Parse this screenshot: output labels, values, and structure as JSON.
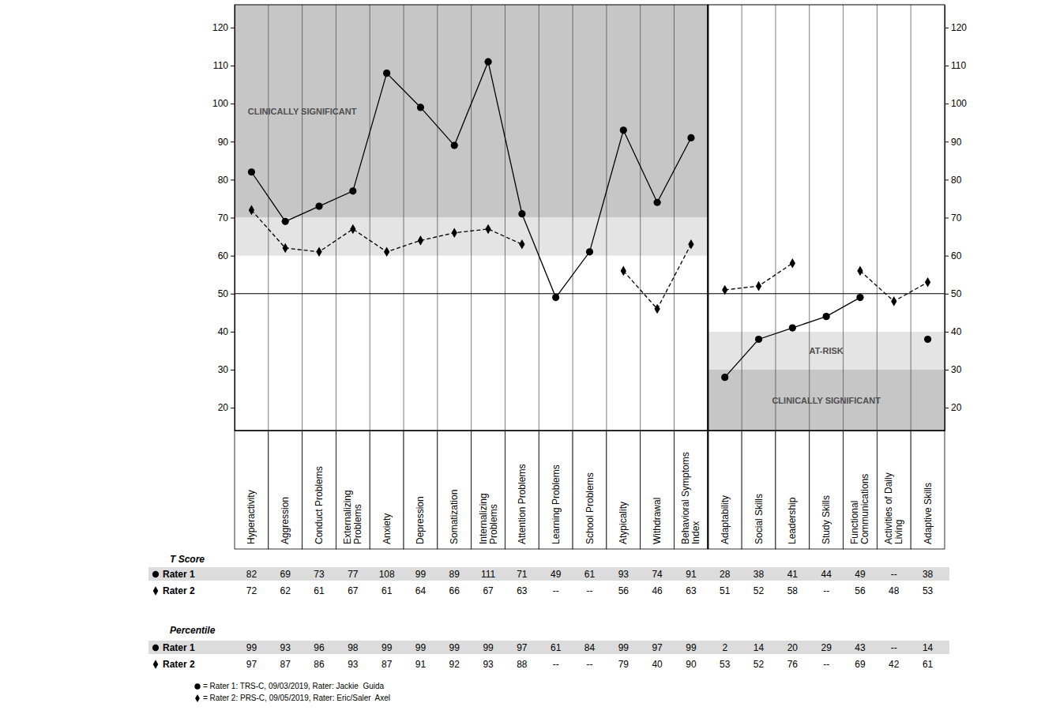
{
  "chart_data": [
    {
      "type": "line",
      "categories": [
        "Hyperactivity",
        "Aggression",
        "Conduct Problems",
        "Externalizing Problems",
        "Anxiety",
        "Depression",
        "Somatization",
        "Internalizing Problems",
        "Attention Problems",
        "Learning Problems",
        "School Problems",
        "Atypicality",
        "Withdrawal",
        "Behavioral Symptoms Index"
      ],
      "series": [
        {
          "name": "Rater 1",
          "color": "#000000",
          "marker": "circle",
          "line_style": "solid",
          "values": [
            82,
            69,
            73,
            77,
            108,
            99,
            89,
            111,
            71,
            49,
            61,
            93,
            74,
            91
          ],
          "percentiles": [
            99,
            93,
            96,
            98,
            99,
            99,
            99,
            99,
            97,
            61,
            84,
            99,
            97,
            99
          ]
        },
        {
          "name": "Rater 2",
          "color": "#000000",
          "marker": "diamond",
          "line_style": "dashed",
          "values": [
            72,
            62,
            61,
            67,
            61,
            64,
            66,
            67,
            63,
            null,
            null,
            56,
            46,
            63
          ],
          "percentiles": [
            97,
            87,
            86,
            93,
            87,
            91,
            92,
            93,
            88,
            null,
            null,
            79,
            40,
            90
          ]
        }
      ],
      "ylim": [
        14,
        126
      ],
      "yticks": [
        20,
        30,
        40,
        50,
        60,
        70,
        80,
        90,
        100,
        110,
        120
      ],
      "grid": false,
      "reference_line": 50,
      "bands": [
        {
          "from": 70,
          "to": 126,
          "label": "CLINICALLY SIGNIFICANT"
        },
        {
          "from": 60,
          "to": 70
        }
      ]
    },
    {
      "type": "line",
      "categories": [
        "Adaptability",
        "Social Skills",
        "Leadership",
        "Study Skills",
        "Functional Communications",
        "Activities of Daily Living",
        "Adaptive Skills"
      ],
      "series": [
        {
          "name": "Rater 1",
          "color": "#000000",
          "marker": "circle",
          "line_style": "solid",
          "values": [
            28,
            38,
            41,
            44,
            49,
            null,
            38
          ],
          "percentiles": [
            2,
            14,
            20,
            29,
            43,
            null,
            14
          ]
        },
        {
          "name": "Rater 2",
          "color": "#000000",
          "marker": "diamond",
          "line_style": "dashed",
          "values": [
            51,
            52,
            58,
            null,
            56,
            48,
            53
          ],
          "percentiles": [
            53,
            52,
            76,
            null,
            69,
            42,
            61
          ]
        }
      ],
      "ylim": [
        14,
        126
      ],
      "yticks": [
        20,
        30,
        40,
        50,
        60,
        70,
        80,
        90,
        100,
        110,
        120
      ],
      "grid": false,
      "reference_line": 50,
      "bands": [
        {
          "from": 14,
          "to": 30,
          "label": "CLINICALLY SIGNIFICANT"
        },
        {
          "from": 30,
          "to": 40,
          "label": "AT-RISK"
        }
      ]
    }
  ],
  "table": {
    "headings": [
      "T Score",
      "Percentile"
    ],
    "missing": "--"
  },
  "notes": [
    "= Rater 1: TRS-C, 09/03/2019, Rater: Jackie  Guida",
    "= Rater 2: PRS-C, 09/05/2019, Rater: Eric/Saler  Axel"
  ]
}
